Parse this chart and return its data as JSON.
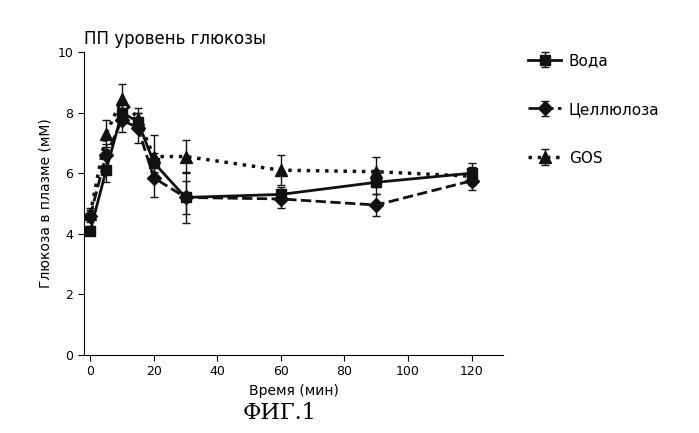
{
  "title": "ПП уровень глюкозы",
  "xlabel": "Время (мин)",
  "ylabel": "Глюкоза в плазме (мМ)",
  "caption": "ФИГ.1",
  "xlim": [
    -2,
    130
  ],
  "ylim": [
    0,
    10
  ],
  "yticks": [
    0,
    2,
    4,
    6,
    8,
    10
  ],
  "xticks": [
    0,
    20,
    40,
    60,
    80,
    100,
    120
  ],
  "series": [
    {
      "key": "water",
      "label": "Вода",
      "x": [
        0,
        5,
        10,
        15,
        20,
        30,
        60,
        90,
        120
      ],
      "y": [
        4.1,
        6.1,
        8.0,
        7.7,
        6.35,
        5.2,
        5.3,
        5.7,
        6.0
      ],
      "yerr": [
        0.15,
        0.4,
        0.35,
        0.3,
        0.3,
        0.55,
        0.25,
        0.4,
        0.35
      ],
      "color": "#111111",
      "linestyle": "-",
      "marker": "s",
      "linewidth": 2.0,
      "markersize": 7
    },
    {
      "key": "cellulose",
      "label": "Целлюлоза",
      "x": [
        0,
        5,
        10,
        15,
        20,
        30,
        60,
        90,
        120
      ],
      "y": [
        4.6,
        6.6,
        7.75,
        7.5,
        5.85,
        5.2,
        5.15,
        4.95,
        5.75
      ],
      "yerr": [
        0.2,
        0.35,
        0.4,
        0.5,
        0.65,
        0.85,
        0.3,
        0.35,
        0.3
      ],
      "color": "#111111",
      "linestyle": "--",
      "marker": "D",
      "linewidth": 2.0,
      "markersize": 7
    },
    {
      "key": "gos",
      "label": "GOS",
      "x": [
        0,
        5,
        10,
        15,
        20,
        30,
        60,
        90,
        120
      ],
      "y": [
        4.65,
        7.3,
        8.45,
        7.8,
        6.55,
        6.55,
        6.1,
        6.05,
        5.9
      ],
      "yerr": [
        0.2,
        0.45,
        0.5,
        0.35,
        0.7,
        0.55,
        0.5,
        0.5,
        0.3
      ],
      "color": "#111111",
      "linestyle": ":",
      "marker": "^",
      "linewidth": 2.5,
      "markersize": 8
    }
  ],
  "background_color": "#ffffff",
  "title_fontsize": 12,
  "label_fontsize": 10,
  "tick_fontsize": 9,
  "legend_fontsize": 11,
  "caption_fontsize": 16
}
